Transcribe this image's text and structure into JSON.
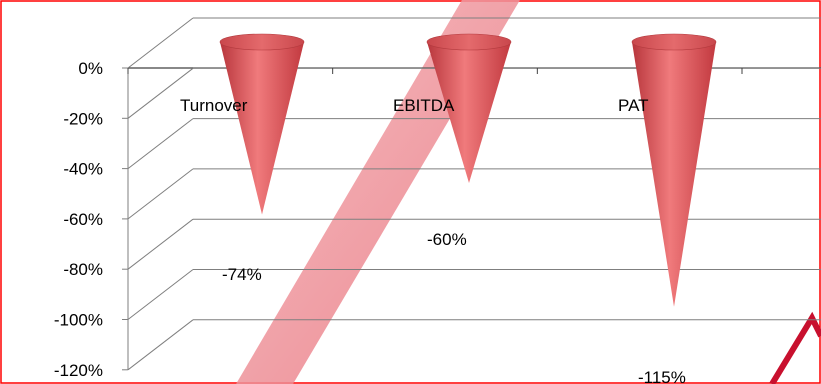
{
  "chart_data": {
    "type": "bar",
    "subtype": "3d-cone",
    "categories": [
      "Turnover",
      "EBITDA",
      "PAT"
    ],
    "values": [
      -74,
      -60,
      -115
    ],
    "value_labels": [
      "-74%",
      "-60%",
      "-115%"
    ],
    "yticks": [
      "0%",
      "-20%",
      "-40%",
      "-60%",
      "-80%",
      "-100%",
      "-120%"
    ],
    "ylim": [
      -120,
      0
    ],
    "grid": true,
    "legend": "none"
  },
  "colors": {
    "cone": "#d94c50",
    "cone_highlight": "#f08a8a",
    "border": "#ff0000",
    "gridline": "#7f7f7f",
    "watermark": "#c8102e"
  }
}
